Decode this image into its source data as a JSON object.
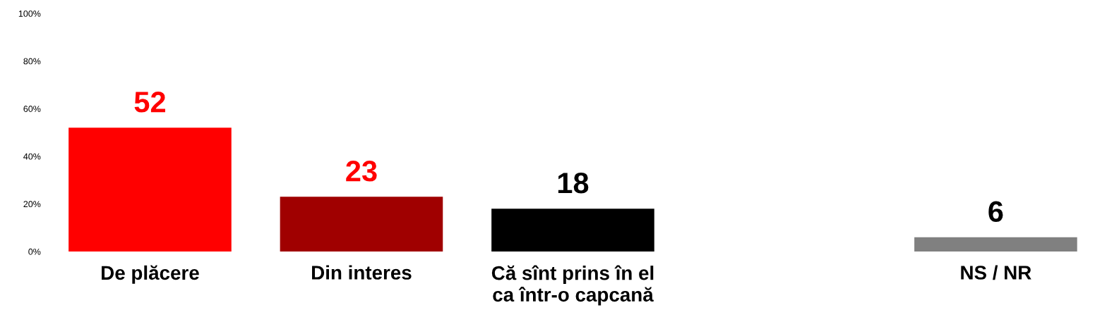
{
  "chart_data": {
    "type": "bar",
    "categories": [
      "De plăcere",
      "Din interes",
      "Că sînt prins în el\nca într-o capcană",
      null,
      "NS / NR"
    ],
    "values": [
      52,
      23,
      18,
      null,
      6
    ],
    "colors": [
      "#ff0000",
      "#a00000",
      "#000000",
      "#808080",
      "#808080"
    ],
    "ylim": [
      0,
      100
    ],
    "yticks": [
      {
        "value": 0,
        "label": "0%"
      },
      {
        "value": 20,
        "label": "20%"
      },
      {
        "value": 40,
        "label": "40%"
      },
      {
        "value": 60,
        "label": "60%"
      },
      {
        "value": 80,
        "label": "80%"
      },
      {
        "value": 100,
        "label": "100%"
      }
    ],
    "data_labels": true,
    "grid": false
  }
}
